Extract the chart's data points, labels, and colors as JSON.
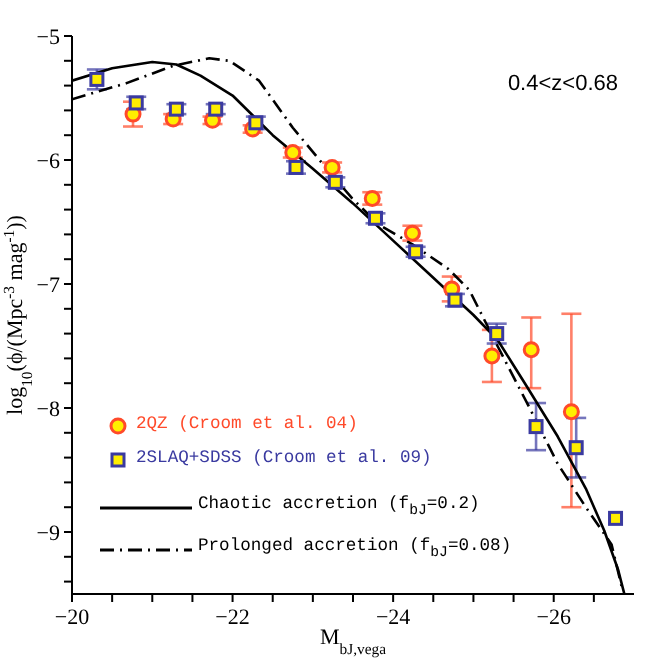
{
  "chart_data": {
    "type": "scatter",
    "xlabel": "M$_{bJ,vega}$",
    "ylabel": "log$_{10}$(ϕ/(Mpc$^{-3}$ mag$^{-1}$))",
    "annotations": [
      "0.4<z<0.68"
    ],
    "xlim": [
      -20,
      -27
    ],
    "xticks": [
      -20,
      {
        "value": -20.5,
        "label": null
      },
      {
        "value": -21,
        "label": null
      },
      {
        "value": -21.5,
        "label": null
      },
      -22,
      {
        "value": -22.5,
        "label": null
      },
      {
        "value": -23,
        "label": null
      },
      {
        "value": -23.5,
        "label": null
      },
      -24,
      {
        "value": -24.5,
        "label": null
      },
      {
        "value": -25,
        "label": null
      },
      {
        "value": -25.5,
        "label": null
      },
      -26,
      {
        "value": -26.5,
        "label": null
      }
    ],
    "ylim": [
      -9.5,
      -5
    ],
    "yticks": [
      {
        "value": -9.4,
        "label": null
      },
      {
        "value": -9.2,
        "label": null
      },
      -9,
      {
        "value": -8.8,
        "label": null
      },
      {
        "value": -8.6,
        "label": null
      },
      {
        "value": -8.4,
        "label": null
      },
      {
        "value": -8.2,
        "label": null
      },
      -8,
      {
        "value": -7.8,
        "label": null
      },
      {
        "value": -7.6,
        "label": null
      },
      {
        "value": -7.4,
        "label": null
      },
      {
        "value": -7.2,
        "label": null
      },
      -7,
      {
        "value": -6.8,
        "label": null
      },
      {
        "value": -6.6,
        "label": null
      },
      {
        "value": -6.4,
        "label": null
      },
      {
        "value": -6.2,
        "label": null
      },
      -6,
      {
        "value": -5.8,
        "label": null
      },
      {
        "value": -5.6,
        "label": null
      },
      {
        "value": -5.4,
        "label": null
      },
      {
        "value": -5.2,
        "label": null
      },
      -5
    ],
    "grid": false,
    "legend": "bottom left",
    "series": [
      {
        "name": "2QZ (Croom et al. 04)",
        "marker": "circle",
        "color": "#ff4a2a",
        "x": [
          -20.76,
          -21.26,
          -21.75,
          -22.25,
          -22.75,
          -23.24,
          -23.74,
          -24.24,
          -24.73,
          -25.23,
          -25.72,
          -26.22
        ],
        "values": [
          -5.63,
          -5.67,
          -5.68,
          -5.75,
          -5.94,
          -6.06,
          -6.31,
          -6.59,
          -7.04,
          -7.58,
          -7.53,
          -8.03
        ],
        "errors": [
          0.1,
          0.04,
          0.03,
          0.03,
          0.04,
          0.04,
          0.05,
          0.06,
          0.1,
          0.21,
          [
            -7.84,
            -7.27
          ],
          [
            -8.8,
            -7.24
          ]
        ]
      },
      {
        "name": "2SLAQ+SDSS (Croom et al. 09)",
        "marker": "square",
        "color": "#3a3aa0",
        "x": [
          -20.31,
          -20.8,
          -21.3,
          -21.79,
          -22.29,
          -22.79,
          -23.28,
          -23.78,
          -24.28,
          -24.77,
          -25.29,
          -25.78,
          -26.28,
          -26.77
        ],
        "values": [
          -5.35,
          -5.54,
          -5.59,
          -5.59,
          -5.7,
          -6.06,
          -6.18,
          -6.47,
          -6.74,
          -7.13,
          -7.4,
          -8.15,
          -8.32,
          -8.89
        ],
        "errors": [
          0.08,
          0.05,
          0.04,
          0.04,
          0.05,
          0.05,
          0.04,
          0.04,
          0.04,
          0.05,
          0.08,
          0.19,
          0.24,
          null
        ]
      },
      {
        "name": "Chaotic accretion (f$_{bJ}$=0.2)",
        "type": "line",
        "line_style": "solid",
        "color": "#000000",
        "x": [
          -20,
          -20.5,
          -21,
          -21.3,
          -21.6,
          -22,
          -22.5,
          -23,
          -23.5,
          -24,
          -24.5,
          -25,
          -25.3,
          -25.64,
          -26.05,
          -26.4,
          -26.63,
          -26.8,
          -26.88
        ],
        "values": [
          -5.36,
          -5.26,
          -5.21,
          -5.23,
          -5.32,
          -5.48,
          -5.8,
          -6.07,
          -6.35,
          -6.65,
          -6.95,
          -7.25,
          -7.45,
          -7.8,
          -8.23,
          -8.65,
          -8.99,
          -9.3,
          -9.5
        ]
      },
      {
        "name": "Prolonged accretion (f$_{bJ}$=0.08)",
        "type": "line",
        "line_style": "dashed",
        "color": "#000000",
        "x": [
          -20,
          -20.68,
          -21.26,
          -21.71,
          -21.96,
          -22.33,
          -22.75,
          -23.16,
          -23.49,
          -23.82,
          -24.24,
          -24.69,
          -24.95,
          -25.3,
          -25.7,
          -26.05,
          -26.4,
          -26.72,
          -26.85
        ],
        "values": [
          -5.51,
          -5.38,
          -5.24,
          -5.18,
          -5.2,
          -5.36,
          -5.74,
          -6.06,
          -6.31,
          -6.52,
          -6.68,
          -6.88,
          -7.05,
          -7.5,
          -8.0,
          -8.45,
          -8.8,
          -9.1,
          -9.45
        ]
      }
    ]
  }
}
